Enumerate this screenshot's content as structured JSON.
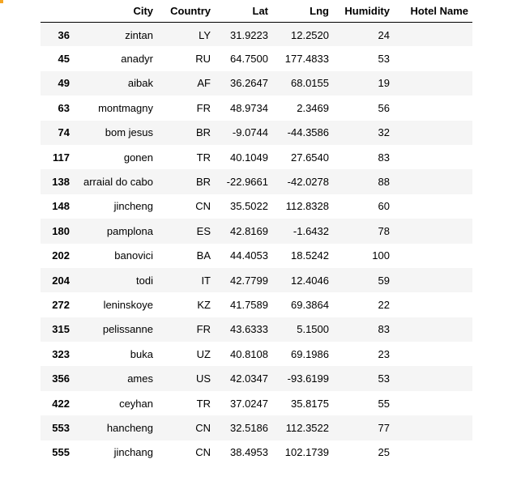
{
  "table": {
    "columns": [
      "City",
      "Country",
      "Lat",
      "Lng",
      "Humidity",
      "Hotel Name"
    ],
    "rows": [
      {
        "index": "36",
        "city": "zintan",
        "country": "LY",
        "lat": "31.9223",
        "lng": "12.2520",
        "humidity": "24",
        "hotel": ""
      },
      {
        "index": "45",
        "city": "anadyr",
        "country": "RU",
        "lat": "64.7500",
        "lng": "177.4833",
        "humidity": "53",
        "hotel": ""
      },
      {
        "index": "49",
        "city": "aibak",
        "country": "AF",
        "lat": "36.2647",
        "lng": "68.0155",
        "humidity": "19",
        "hotel": ""
      },
      {
        "index": "63",
        "city": "montmagny",
        "country": "FR",
        "lat": "48.9734",
        "lng": "2.3469",
        "humidity": "56",
        "hotel": ""
      },
      {
        "index": "74",
        "city": "bom jesus",
        "country": "BR",
        "lat": "-9.0744",
        "lng": "-44.3586",
        "humidity": "32",
        "hotel": ""
      },
      {
        "index": "117",
        "city": "gonen",
        "country": "TR",
        "lat": "40.1049",
        "lng": "27.6540",
        "humidity": "83",
        "hotel": ""
      },
      {
        "index": "138",
        "city": "arraial do cabo",
        "country": "BR",
        "lat": "-22.9661",
        "lng": "-42.0278",
        "humidity": "88",
        "hotel": ""
      },
      {
        "index": "148",
        "city": "jincheng",
        "country": "CN",
        "lat": "35.5022",
        "lng": "112.8328",
        "humidity": "60",
        "hotel": ""
      },
      {
        "index": "180",
        "city": "pamplona",
        "country": "ES",
        "lat": "42.8169",
        "lng": "-1.6432",
        "humidity": "78",
        "hotel": ""
      },
      {
        "index": "202",
        "city": "banovici",
        "country": "BA",
        "lat": "44.4053",
        "lng": "18.5242",
        "humidity": "100",
        "hotel": ""
      },
      {
        "index": "204",
        "city": "todi",
        "country": "IT",
        "lat": "42.7799",
        "lng": "12.4046",
        "humidity": "59",
        "hotel": ""
      },
      {
        "index": "272",
        "city": "leninskoye",
        "country": "KZ",
        "lat": "41.7589",
        "lng": "69.3864",
        "humidity": "22",
        "hotel": ""
      },
      {
        "index": "315",
        "city": "pelissanne",
        "country": "FR",
        "lat": "43.6333",
        "lng": "5.1500",
        "humidity": "83",
        "hotel": ""
      },
      {
        "index": "323",
        "city": "buka",
        "country": "UZ",
        "lat": "40.8108",
        "lng": "69.1986",
        "humidity": "23",
        "hotel": ""
      },
      {
        "index": "356",
        "city": "ames",
        "country": "US",
        "lat": "42.0347",
        "lng": "-93.6199",
        "humidity": "53",
        "hotel": ""
      },
      {
        "index": "422",
        "city": "ceyhan",
        "country": "TR",
        "lat": "37.0247",
        "lng": "35.8175",
        "humidity": "55",
        "hotel": ""
      },
      {
        "index": "553",
        "city": "hancheng",
        "country": "CN",
        "lat": "32.5186",
        "lng": "112.3522",
        "humidity": "77",
        "hotel": ""
      },
      {
        "index": "555",
        "city": "jinchang",
        "country": "CN",
        "lat": "38.4953",
        "lng": "102.1739",
        "humidity": "25",
        "hotel": ""
      }
    ]
  },
  "colors": {
    "row_stripe": "#f5f5f5",
    "header_rule": "#000000",
    "top_left_mark": "#f5a623"
  }
}
